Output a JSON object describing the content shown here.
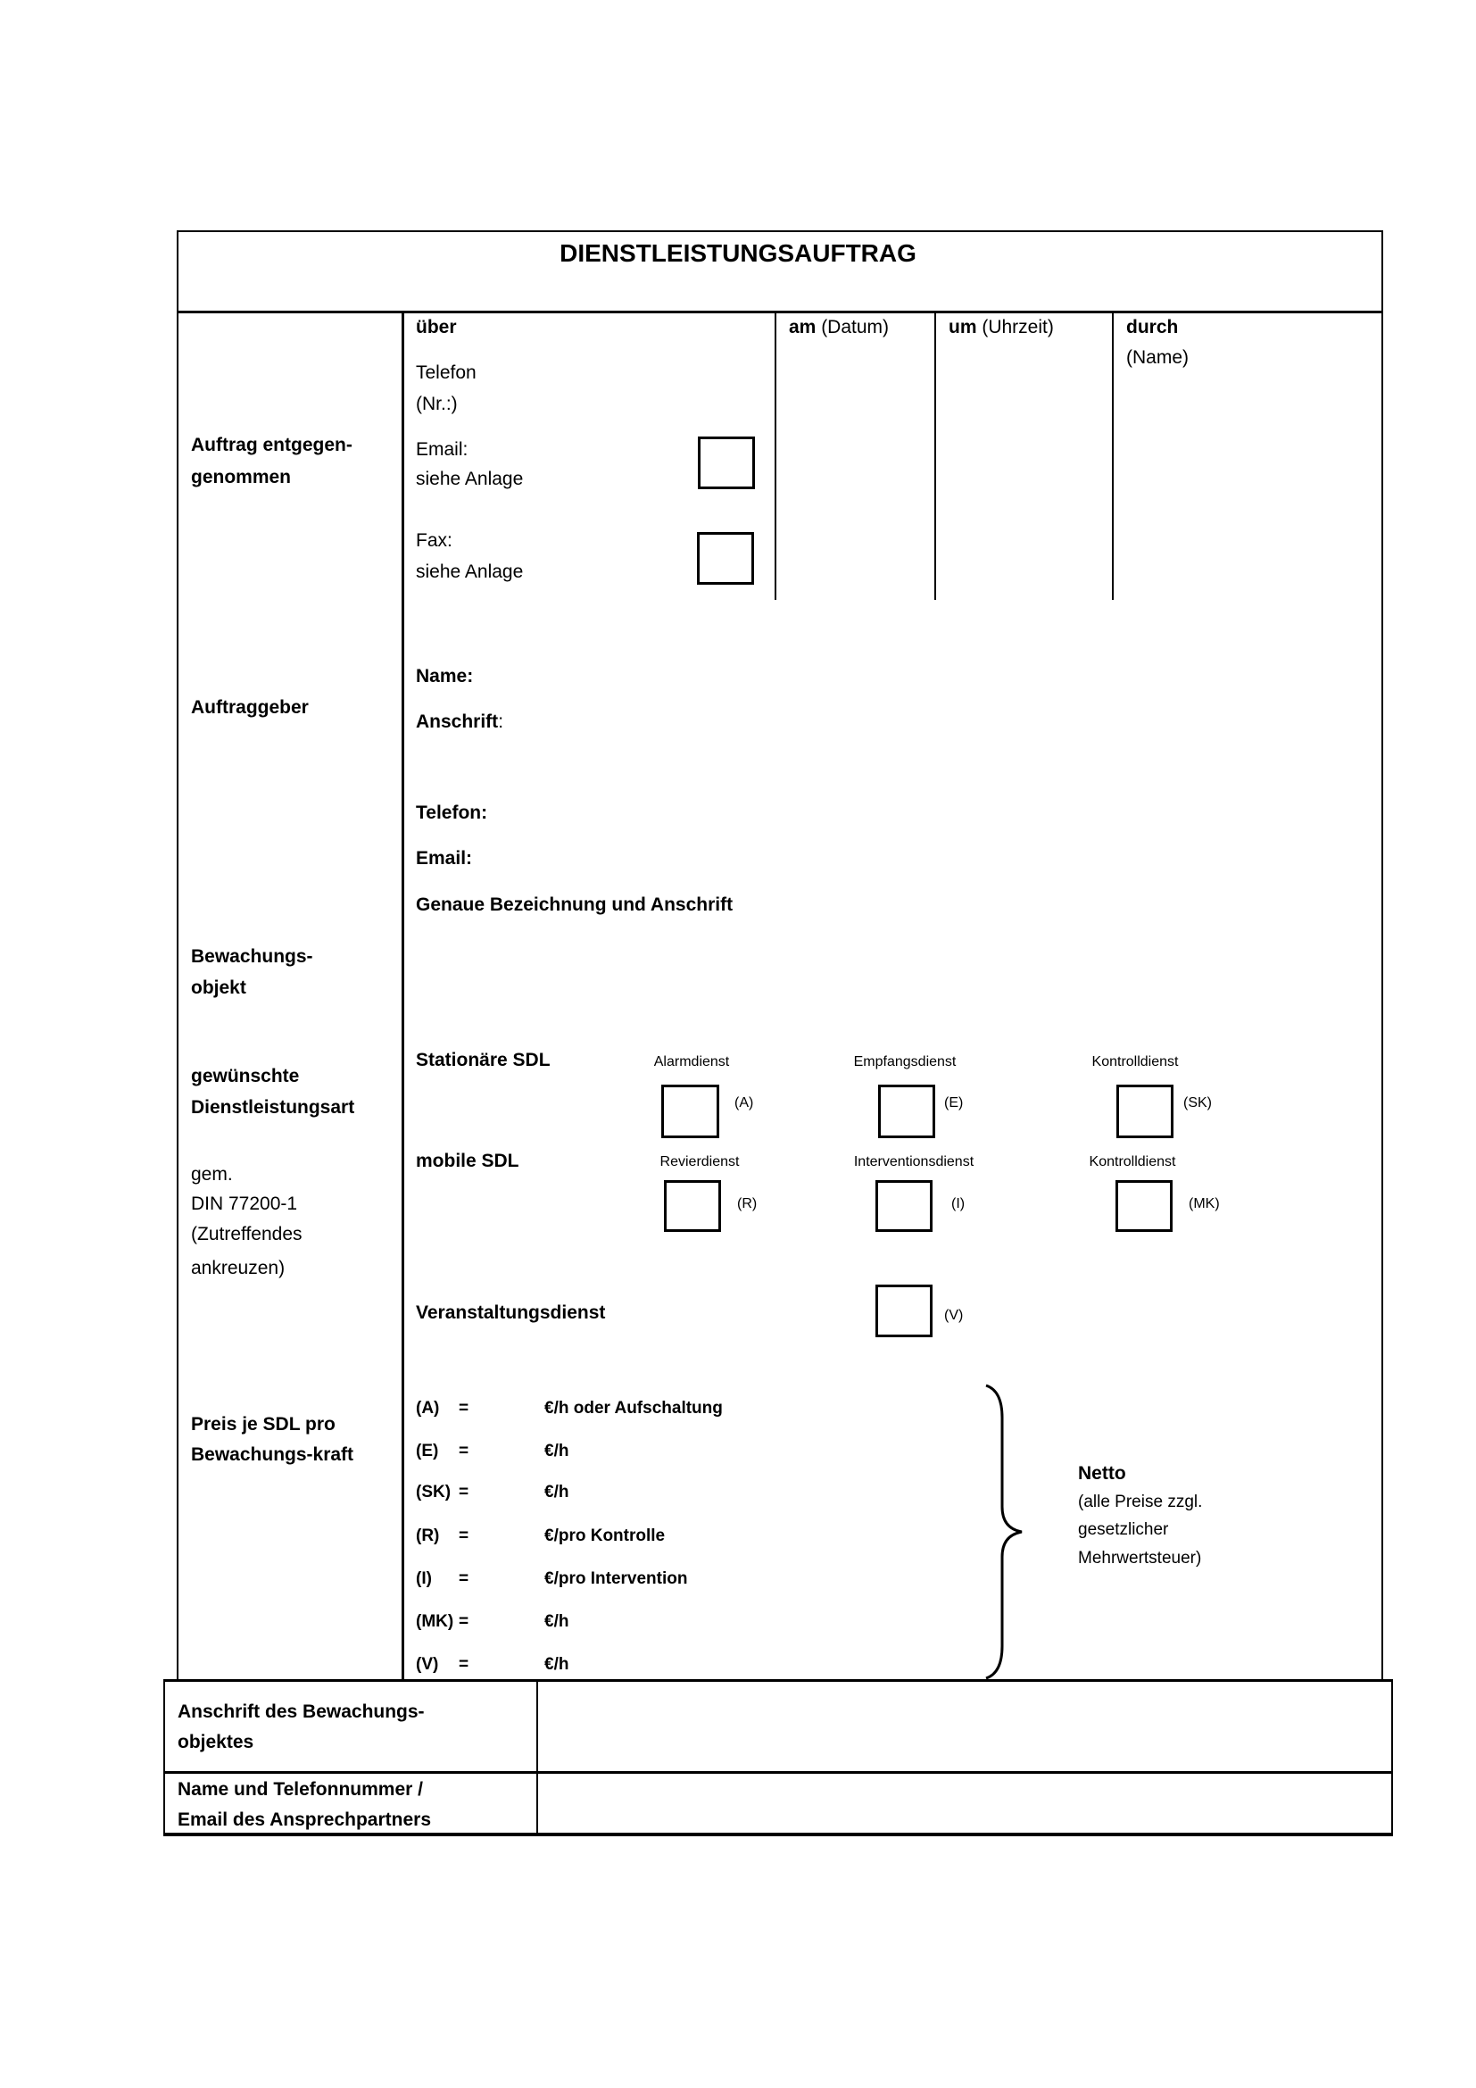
{
  "title": "DIENSTLEISTUNGSAUFTRAG",
  "received": {
    "label_line1": "Auftrag entgegen-",
    "label_line2": "genommen",
    "via": "über",
    "phone_line1": "Telefon",
    "phone_line2": "(Nr.:)",
    "email_line1": "Email:",
    "email_line2": "siehe Anlage",
    "fax_line1": "Fax:",
    "fax_line2": "siehe Anlage",
    "date_bold": "am",
    "date_rest": " (Datum)",
    "time_bold": "um",
    "time_rest": " (Uhrzeit)",
    "by_bold": "durch",
    "by_rest": "(Name)"
  },
  "client": {
    "label": "Auftraggeber",
    "name": "Name:",
    "address": "Anschrift",
    "address_colon": ":",
    "phone": "Telefon:",
    "email": "Email:"
  },
  "object": {
    "label_line1": "Bewachungs-",
    "label_line2": "objekt",
    "description": "Genaue Bezeichnung und Anschrift"
  },
  "service_type": {
    "label_line1": "gewünschte",
    "label_line2": "Dienstleistungsart",
    "note_line1": "gem.",
    "note_line2": "DIN 77200-1",
    "note_line3": "(Zutreffendes",
    "note_line4": "ankreuzen)",
    "stationary": "Stationäre SDL",
    "mobile": "mobile SDL",
    "event": "Veranstaltungsdienst",
    "options": [
      {
        "label": "Alarmdienst",
        "code": "(A)",
        "checked": false
      },
      {
        "label": "Empfangsdienst",
        "code": "(E)",
        "checked": false
      },
      {
        "label": "Kontrolldienst",
        "code": "(SK)",
        "checked": false
      },
      {
        "label": "Revierdienst",
        "code": "(R)",
        "checked": false
      },
      {
        "label": "Interventionsdienst",
        "code": "(I)",
        "checked": false
      },
      {
        "label": "Kontrolldienst",
        "code": "(MK)",
        "checked": false
      },
      {
        "label": "",
        "code": "(V)",
        "checked": false
      }
    ]
  },
  "prices": {
    "label_line1": "Preis je SDL pro",
    "label_line2": "Bewachungs-kraft",
    "rows": [
      {
        "code": "(A)",
        "eq": "=",
        "unit": "€/h oder Aufschaltung"
      },
      {
        "code": "(E)",
        "eq": "=",
        "unit": "€/h"
      },
      {
        "code": "(SK)",
        "eq": "=",
        "unit": "€/h"
      },
      {
        "code": "(R)",
        "eq": "=",
        "unit": "€/pro Kontrolle"
      },
      {
        "code": "(I)",
        "eq": "=",
        "unit": "€/pro Intervention"
      },
      {
        "code": "(MK)",
        "eq": "=",
        "unit": "€/h"
      },
      {
        "code": "(V)",
        "eq": "=",
        "unit": "€/h"
      }
    ],
    "netto": "Netto",
    "netto_note_line1": "(alle Preise zzgl.",
    "netto_note_line2": "gesetzlicher",
    "netto_note_line3": "Mehrwertsteuer)"
  },
  "footer_table": {
    "row1_line1": "Anschrift des Bewachungs-",
    "row1_line2": "objektes",
    "row2_line1": "Name und Telefonnummer /",
    "row2_line2": "Email des Ansprechpartners"
  }
}
